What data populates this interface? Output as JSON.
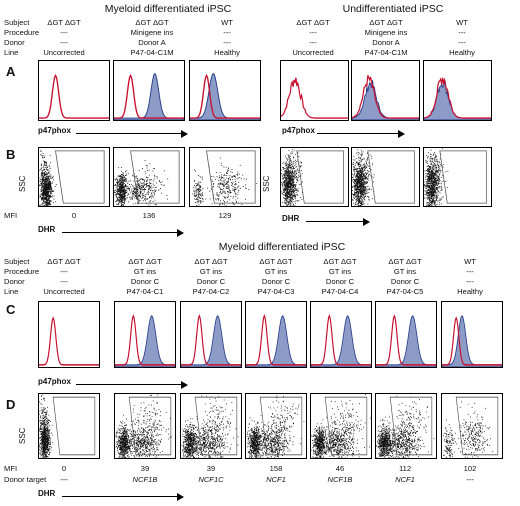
{
  "figure": {
    "top": {
      "left_title": "Myeloid differentiated iPSC",
      "right_title": "Undifferentiated iPSC",
      "row_labels": [
        "Subject",
        "Procedure",
        "Donor",
        "Line"
      ],
      "left_columns": [
        {
          "subject": "ΔGT ΔGT",
          "procedure": "---",
          "donor": "---",
          "line": "Uncorrected"
        },
        {
          "subject": "ΔGT ΔGT",
          "procedure": "Minigene ins",
          "donor": "Donor A",
          "line": "P47-04-C1M"
        },
        {
          "subject": "WT",
          "procedure": "---",
          "donor": "---",
          "line": "Healthy"
        }
      ],
      "right_columns": [
        {
          "subject": "ΔGT ΔGT",
          "procedure": "---",
          "donor": "---",
          "line": "Uncorrected"
        },
        {
          "subject": "ΔGT ΔGT",
          "procedure": "Minigene ins",
          "donor": "Donor A",
          "line": "P47-04-C1M"
        },
        {
          "subject": "WT",
          "procedure": "---",
          "donor": "---",
          "line": "Healthy"
        }
      ],
      "panel_A": "A",
      "panel_B": "B",
      "x_axis_A": "p47phox",
      "x_axis_B": "DHR",
      "y_axis_B": "SSC",
      "mfi_label": "MFI",
      "mfi_values": [
        "0",
        "136",
        "129"
      ]
    },
    "bottom": {
      "title": "Myeloid differentiated iPSC",
      "row_labels": [
        "Subject",
        "Procedure",
        "Donor",
        "Line"
      ],
      "columns": [
        {
          "subject": "ΔGT ΔGT",
          "procedure": "---",
          "donor": "---",
          "line": "Uncorrected",
          "mfi": "0",
          "target": "---"
        },
        {
          "subject": "ΔGT ΔGT",
          "procedure": "GT ins",
          "donor": "Donor C",
          "line": "P47-04-C1",
          "mfi": "39",
          "target": "NCF1B"
        },
        {
          "subject": "ΔGT ΔGT",
          "procedure": "GT ins",
          "donor": "Donor C",
          "line": "P47-04-C2",
          "mfi": "39",
          "target": "NCF1C"
        },
        {
          "subject": "ΔGT ΔGT",
          "procedure": "GT ins",
          "donor": "Donor C",
          "line": "P47-04-C3",
          "mfi": "158",
          "target": "NCF1"
        },
        {
          "subject": "ΔGT ΔGT",
          "procedure": "GT ins",
          "donor": "Donor C",
          "line": "P47-04-C4",
          "mfi": "46",
          "target": "NCF1B"
        },
        {
          "subject": "ΔGT ΔGT",
          "procedure": "GT ins",
          "donor": "Donor C",
          "line": "P47-04-C5",
          "mfi": "112",
          "target": "NCF1"
        },
        {
          "subject": "WT",
          "procedure": "---",
          "donor": "---",
          "line": "Healthy",
          "mfi": "102",
          "target": "---"
        }
      ],
      "panel_C": "C",
      "panel_D": "D",
      "x_axis_C": "p47phox",
      "x_axis_D": "DHR",
      "y_axis_D": "SSC",
      "mfi_label": "MFI",
      "donor_target_label": "Donor target"
    },
    "colors": {
      "red": "#c8102e",
      "blue_fill": "#8d9cc7",
      "blue_line": "#2b3f8c"
    }
  }
}
